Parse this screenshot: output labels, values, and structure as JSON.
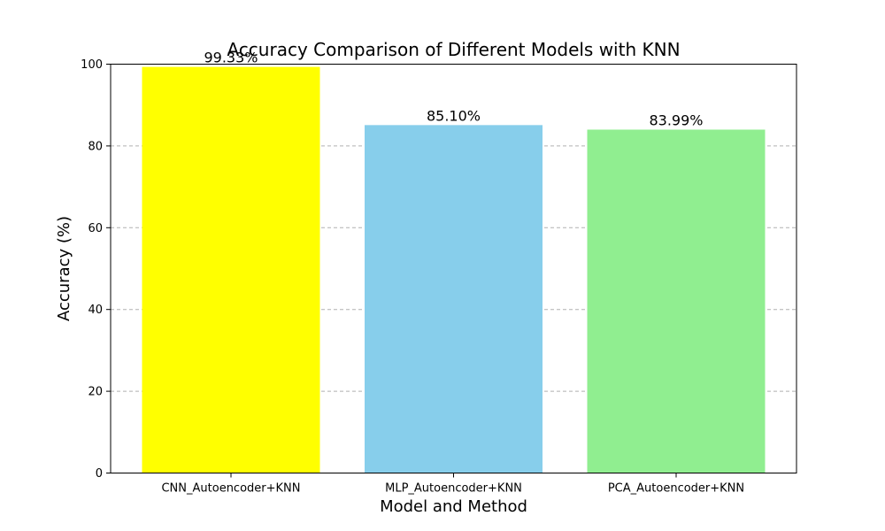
{
  "chart_data": {
    "type": "bar",
    "title": "Accuracy Comparison of Different Models with KNN",
    "xlabel": "Model and Method",
    "ylabel": "Accuracy (%)",
    "categories": [
      "CNN_Autoencoder+KNN",
      "MLP_Autoencoder+KNN",
      "PCA_Autoencoder+KNN"
    ],
    "values": [
      99.33,
      85.1,
      83.99
    ],
    "value_labels": [
      "99.33%",
      "85.10%",
      "83.99%"
    ],
    "colors": [
      "#ffff00",
      "#87ceeb",
      "#90ee90"
    ],
    "ylim": [
      0,
      100
    ],
    "yticks": [
      0,
      20,
      40,
      60,
      80,
      100
    ],
    "ytick_labels": [
      "0",
      "20",
      "40",
      "60",
      "80",
      "100"
    ],
    "grid": "y-dashed",
    "legend": "none"
  }
}
